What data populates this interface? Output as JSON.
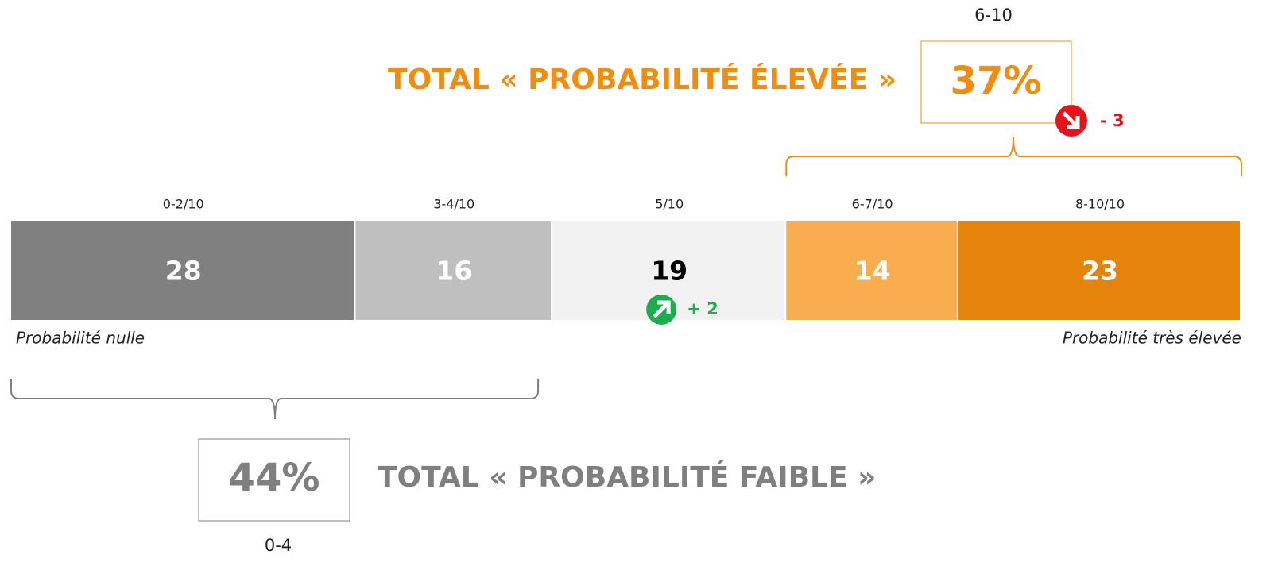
{
  "chart_data": {
    "type": "stacked_bar",
    "categories": [
      "0-2/10",
      "3-4/10",
      "5/10",
      "6-7/10",
      "8-10/10"
    ],
    "values": [
      28,
      16,
      19,
      14,
      23
    ],
    "colors": [
      "#808080",
      "#bfbfbf",
      "#f2f2f2",
      "#f9ad4e",
      "#e5830a"
    ],
    "label_colors": [
      "#ffffff",
      "#ffffff",
      "#000000",
      "#ffffff",
      "#ffffff"
    ],
    "segment_changes": [
      null,
      null,
      2,
      null,
      null
    ],
    "segment_change_labels": [
      null,
      null,
      "+ 2",
      null,
      null
    ],
    "left_label": "Probabilité nulle",
    "right_label": "Probabilité très élevée",
    "high_total": {
      "title": "TOTAL « PROBABILITÉ ÉLEVÉE »",
      "range": "6-10",
      "value": 37,
      "value_label": "37%",
      "change": -3,
      "change_label": "- 3",
      "color": "#f28c0f"
    },
    "low_total": {
      "title": "TOTAL « PROBABILITÉ FAIBLE »",
      "range": "0-4",
      "value": 44,
      "value_label": "44%",
      "color": "#7f7f7f"
    }
  }
}
